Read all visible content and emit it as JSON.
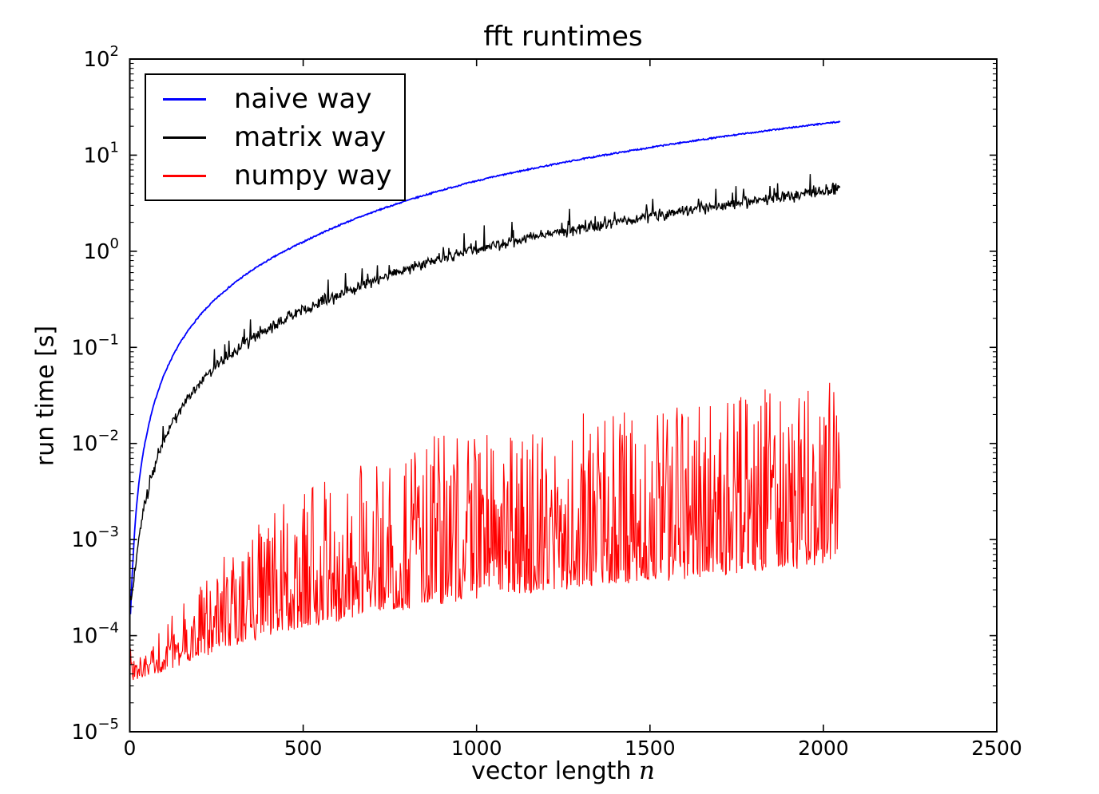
{
  "chart_data": {
    "type": "line",
    "title": "fft runtimes",
    "xlabel": "vector length n",
    "xlabel_parts": {
      "text": "vector length",
      "var": "n"
    },
    "ylabel": "run time [s]",
    "grid": false,
    "background": "#ffffff",
    "frame_color": "#000000",
    "x_axis": {
      "scale": "linear",
      "min": 0,
      "max": 2500,
      "ticks": [
        0,
        500,
        1000,
        1500,
        2000,
        2500
      ]
    },
    "y_axis": {
      "scale": "log",
      "min": 1e-05,
      "max": 100,
      "tick_exponents": [
        -5,
        -4,
        -3,
        -2,
        -1,
        0,
        1,
        2
      ],
      "minor_multiples": [
        2,
        3,
        4,
        5,
        6,
        7,
        8,
        9
      ]
    },
    "legend": {
      "position": "upper left",
      "items": [
        {
          "label": "naive way",
          "color": "#0000ff"
        },
        {
          "label": "matrix way",
          "color": "#000000"
        },
        {
          "label": "numpy way",
          "color": "#ff0000"
        }
      ]
    },
    "n_domain": [
      2,
      2048
    ],
    "n_step": 2,
    "series": [
      {
        "name": "naive way",
        "color": "#0000ff",
        "style": "smooth",
        "line_width": 1.8,
        "jitter_log10": 0.014,
        "anchors_n_seconds": [
          [
            2,
            0.00017
          ],
          [
            5,
            0.00028
          ],
          [
            10,
            0.00068
          ],
          [
            20,
            0.0023
          ],
          [
            50,
            0.013
          ],
          [
            100,
            0.053
          ],
          [
            200,
            0.21
          ],
          [
            500,
            1.25
          ],
          [
            1000,
            5.4
          ],
          [
            1500,
            12.0
          ],
          [
            2048,
            22.3
          ]
        ]
      },
      {
        "name": "matrix way",
        "color": "#000000",
        "style": "noisy",
        "line_width": 1.4,
        "jitter_log10": 0.09,
        "spike_prob": 0.05,
        "spike_max_log10": 0.22,
        "anchors_n_seconds": [
          [
            2,
            0.00024
          ],
          [
            5,
            0.00026
          ],
          [
            10,
            0.00034
          ],
          [
            20,
            0.00066
          ],
          [
            50,
            0.0029
          ],
          [
            100,
            0.011
          ],
          [
            200,
            0.042
          ],
          [
            500,
            0.24
          ],
          [
            1000,
            1.05
          ],
          [
            1500,
            2.3
          ],
          [
            2048,
            4.4
          ]
        ]
      },
      {
        "name": "numpy way",
        "color": "#ff0000",
        "style": "band",
        "line_width": 1.1,
        "lower_envelope_n_seconds": [
          [
            2,
            5e-05
          ],
          [
            8,
            3.3e-05
          ],
          [
            60,
            3.6e-05
          ],
          [
            150,
            4.5e-05
          ],
          [
            300,
            7e-05
          ],
          [
            600,
            0.00012
          ],
          [
            1000,
            0.0002
          ],
          [
            1500,
            0.0003
          ],
          [
            2048,
            0.00045
          ]
        ],
        "upper_envelope_n_seconds": [
          [
            2,
            0.00013
          ],
          [
            8,
            6e-05
          ],
          [
            50,
            8e-05
          ],
          [
            100,
            0.00013
          ],
          [
            200,
            0.00035
          ],
          [
            300,
            0.0009
          ],
          [
            450,
            0.0025
          ],
          [
            600,
            0.006
          ],
          [
            800,
            0.01
          ],
          [
            1000,
            0.015
          ],
          [
            1400,
            0.022
          ],
          [
            1700,
            0.03
          ],
          [
            2048,
            0.045
          ]
        ]
      }
    ]
  }
}
